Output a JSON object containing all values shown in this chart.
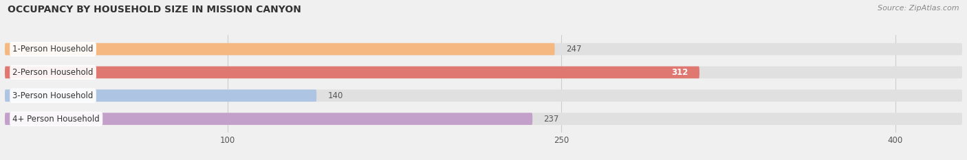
{
  "title": "OCCUPANCY BY HOUSEHOLD SIZE IN MISSION CANYON",
  "source": "Source: ZipAtlas.com",
  "categories": [
    "1-Person Household",
    "2-Person Household",
    "3-Person Household",
    "4+ Person Household"
  ],
  "values": [
    247,
    312,
    140,
    237
  ],
  "colors": [
    "#f5b880",
    "#e07872",
    "#adc4e2",
    "#c3a0ca"
  ],
  "bar_label_colors": [
    "#555555",
    "#ffffff",
    "#555555",
    "#555555"
  ],
  "value_inside": [
    false,
    true,
    false,
    false
  ],
  "xlim_max": 430,
  "xticks": [
    100,
    250,
    400
  ],
  "background_color": "#f0f0f0",
  "bar_background_color": "#e0e0e0",
  "title_fontsize": 10,
  "source_fontsize": 8,
  "label_fontsize": 8.5,
  "value_fontsize": 8.5,
  "bar_height": 0.52,
  "figsize": [
    14.06,
    2.33
  ],
  "dpi": 100
}
